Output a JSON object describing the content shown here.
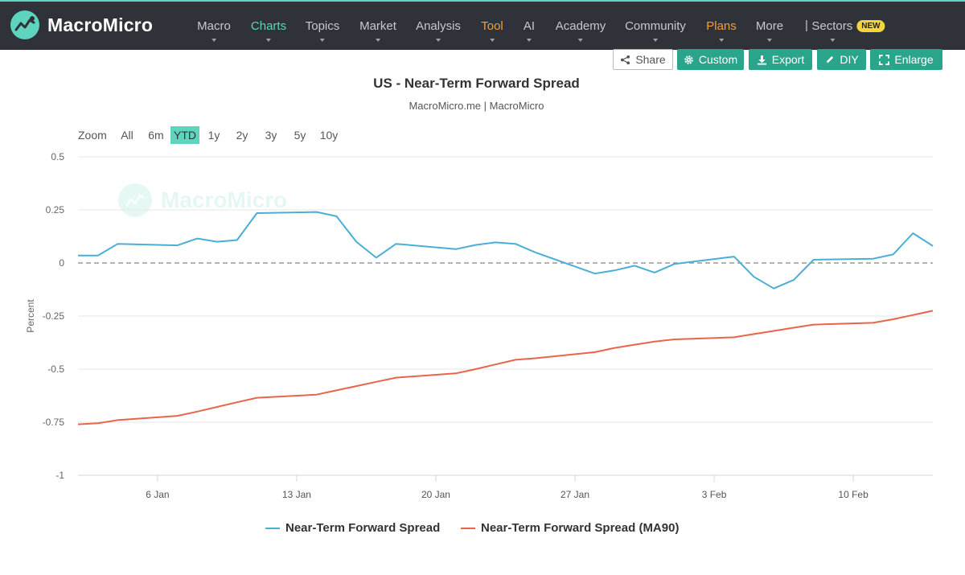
{
  "brand": {
    "name": "MacroMicro",
    "watermark": "MacroMicro",
    "accent": "#5ed3bd",
    "nav_bg": "#2f3339"
  },
  "nav": {
    "items": [
      {
        "label": "Macro",
        "color": "#c6c9cc"
      },
      {
        "label": "Charts",
        "color": "#5ed3bd"
      },
      {
        "label": "Topics",
        "color": "#c6c9cc"
      },
      {
        "label": "Market",
        "color": "#c6c9cc"
      },
      {
        "label": "Analysis",
        "color": "#c6c9cc"
      },
      {
        "label": "Tool",
        "color": "#f39c3d"
      },
      {
        "label": "AI",
        "color": "#c6c9cc"
      },
      {
        "label": "Academy",
        "color": "#c6c9cc"
      },
      {
        "label": "Community",
        "color": "#c6c9cc"
      },
      {
        "label": "Plans",
        "color": "#f39c3d"
      },
      {
        "label": "More",
        "color": "#c6c9cc"
      }
    ],
    "separator": "|",
    "sectors": {
      "label": "Sectors",
      "badge": "NEW"
    }
  },
  "toolbar": {
    "share": {
      "label": "Share",
      "icon": "share-icon"
    },
    "custom": {
      "label": "Custom",
      "icon": "gear-icon"
    },
    "export": {
      "label": "Export",
      "icon": "download-icon"
    },
    "diy": {
      "label": "DIY",
      "icon": "pencil-icon"
    },
    "enlarge": {
      "label": "Enlarge",
      "icon": "expand-icon"
    },
    "button_color": "#2aa48a"
  },
  "zoom": {
    "label": "Zoom",
    "options": [
      "All",
      "6m",
      "YTD",
      "1y",
      "2y",
      "3y",
      "5y",
      "10y"
    ],
    "selected": "YTD"
  },
  "chart_data": {
    "type": "line",
    "title": "US - Near-Term Forward Spread",
    "subtitle": "MacroMicro.me | MacroMicro",
    "ylabel": "Percent",
    "ylim": [
      -1,
      0.5
    ],
    "yticks": [
      0.5,
      0.25,
      0,
      -0.25,
      -0.5,
      -0.75,
      -1
    ],
    "ytick_labels": [
      "0.5",
      "0.25",
      "0",
      "-0.25",
      "-0.5",
      "-0.75",
      "-1"
    ],
    "xlim": [
      "2025-01-02",
      "2025-02-14"
    ],
    "xticks": [
      "2025-01-06",
      "2025-01-13",
      "2025-01-20",
      "2025-01-27",
      "2025-02-03",
      "2025-02-10"
    ],
    "xtick_labels": [
      "6 Jan",
      "13 Jan",
      "20 Jan",
      "27 Jan",
      "3 Feb",
      "10 Feb"
    ],
    "zero_line": {
      "y": 0,
      "style": "dashed",
      "color": "#999999"
    },
    "grid": "horizontal",
    "legend_position": "bottom-center",
    "series": [
      {
        "name": "Near-Term Forward Spread",
        "color": "#4aaed6",
        "x": [
          "2025-01-02",
          "2025-01-03",
          "2025-01-04",
          "2025-01-07",
          "2025-01-08",
          "2025-01-09",
          "2025-01-10",
          "2025-01-11",
          "2025-01-14",
          "2025-01-15",
          "2025-01-16",
          "2025-01-17",
          "2025-01-18",
          "2025-01-21",
          "2025-01-22",
          "2025-01-23",
          "2025-01-24",
          "2025-01-25",
          "2025-01-28",
          "2025-01-29",
          "2025-01-30",
          "2025-01-31",
          "2025-02-01",
          "2025-02-04",
          "2025-02-05",
          "2025-02-06",
          "2025-02-07",
          "2025-02-08",
          "2025-02-11",
          "2025-02-12",
          "2025-02-13",
          "2025-02-14"
        ],
        "y": [
          0.035,
          0.035,
          0.09,
          0.083,
          0.115,
          0.1,
          0.108,
          0.235,
          0.24,
          0.22,
          0.1,
          0.025,
          0.09,
          0.065,
          0.085,
          0.097,
          0.09,
          0.05,
          -0.05,
          -0.035,
          -0.013,
          -0.045,
          -0.005,
          0.03,
          -0.065,
          -0.12,
          -0.08,
          0.015,
          0.02,
          0.04,
          0.14,
          0.08
        ]
      },
      {
        "name": "Near-Term Forward Spread (MA90)",
        "color": "#e8654a",
        "x": [
          "2025-01-02",
          "2025-01-03",
          "2025-01-04",
          "2025-01-07",
          "2025-01-08",
          "2025-01-09",
          "2025-01-10",
          "2025-01-11",
          "2025-01-14",
          "2025-01-15",
          "2025-01-16",
          "2025-01-17",
          "2025-01-18",
          "2025-01-21",
          "2025-01-22",
          "2025-01-23",
          "2025-01-24",
          "2025-01-25",
          "2025-01-28",
          "2025-01-29",
          "2025-01-30",
          "2025-01-31",
          "2025-02-01",
          "2025-02-04",
          "2025-02-05",
          "2025-02-06",
          "2025-02-07",
          "2025-02-08",
          "2025-02-11",
          "2025-02-12",
          "2025-02-13",
          "2025-02-14"
        ],
        "y": [
          -0.76,
          -0.755,
          -0.74,
          -0.72,
          -0.7,
          -0.678,
          -0.656,
          -0.635,
          -0.62,
          -0.6,
          -0.58,
          -0.56,
          -0.54,
          -0.52,
          -0.5,
          -0.478,
          -0.456,
          -0.449,
          -0.42,
          -0.4,
          -0.385,
          -0.37,
          -0.36,
          -0.35,
          -0.335,
          -0.32,
          -0.305,
          -0.29,
          -0.282,
          -0.265,
          -0.245,
          -0.225
        ]
      }
    ]
  }
}
